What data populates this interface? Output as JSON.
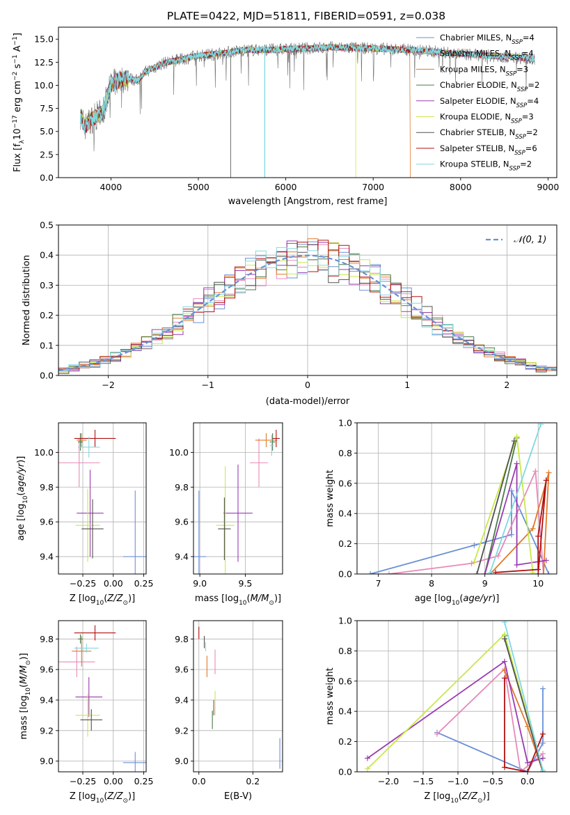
{
  "figure": {
    "title": "PLATE=0422, MJD=51811, FIBERID=0591, z=0.038"
  },
  "colors": {
    "chabrier_miles": "#6a8fd8",
    "salpeter_miles": "#e888b8",
    "kroupa_miles": "#e07a2a",
    "chabrier_elodie": "#4a7a4a",
    "salpeter_elodie": "#9a3ab0",
    "kroupa_elodie": "#c8e84a",
    "chabrier_stelib": "#505050",
    "salpeter_stelib": "#b01010",
    "kroupa_stelib": "#80d8e0"
  },
  "chart_data": [
    {
      "id": "spectrum",
      "type": "line",
      "xlabel": "wavelength [Angstrom, rest frame]",
      "ylabel": "Flux [f_λ10^-17 erg cm^-2 s^-1 A^-1]",
      "xlim": [
        3400,
        9100
      ],
      "ylim": [
        0,
        16.3
      ],
      "xticks": [
        4000,
        5000,
        6000,
        7000,
        8000,
        9000
      ],
      "yticks": [
        0.0,
        2.5,
        5.0,
        7.5,
        10.0,
        12.5,
        15.0
      ],
      "grid": false,
      "legend_position": "top-right",
      "legend": [
        {
          "base": "Chabrier MILES, N",
          "sub": "SSP",
          "val": "=4",
          "color": "chabrier_miles"
        },
        {
          "base": "Salpeter MILES, N",
          "sub": "SSP",
          "val": "=4",
          "color": "salpeter_miles"
        },
        {
          "base": "Kroupa MILES, N",
          "sub": "SSP",
          "val": "=3",
          "color": "kroupa_miles"
        },
        {
          "base": "Chabrier ELODIE, N",
          "sub": "SSP",
          "val": "=2",
          "color": "chabrier_elodie"
        },
        {
          "base": "Salpeter ELODIE, N",
          "sub": "SSP",
          "val": "=4",
          "color": "salpeter_elodie"
        },
        {
          "base": "Kroupa ELODIE, N",
          "sub": "SSP",
          "val": "=3",
          "color": "kroupa_elodie"
        },
        {
          "base": "Chabrier STELIB, N",
          "sub": "SSP",
          "val": "=2",
          "color": "chabrier_stelib"
        },
        {
          "base": "Salpeter STELIB, N",
          "sub": "SSP",
          "val": "=6",
          "color": "salpeter_stelib"
        },
        {
          "base": "Kroupa STELIB, N",
          "sub": "SSP",
          "val": "=2",
          "color": "kroupa_stelib"
        }
      ],
      "continuum": [
        [
          3650,
          6.8
        ],
        [
          3700,
          5.5
        ],
        [
          3800,
          6.5
        ],
        [
          3900,
          7.0
        ],
        [
          4000,
          10.0
        ],
        [
          4100,
          10.6
        ],
        [
          4200,
          10.8
        ],
        [
          4300,
          10.5
        ],
        [
          4400,
          11.5
        ],
        [
          4600,
          12.4
        ],
        [
          4800,
          12.8
        ],
        [
          5000,
          13.2
        ],
        [
          5200,
          13.4
        ],
        [
          5500,
          13.8
        ],
        [
          6000,
          13.9
        ],
        [
          6500,
          14.1
        ],
        [
          7000,
          14.0
        ],
        [
          7500,
          13.8
        ],
        [
          8000,
          13.4
        ],
        [
          8500,
          13.1
        ],
        [
          8850,
          12.9
        ]
      ],
      "dropouts": [
        {
          "x": 5370,
          "model": "chabrier_stelib"
        },
        {
          "x": 5760,
          "model": "kroupa_stelib"
        },
        {
          "x": 6800,
          "model": "kroupa_elodie"
        },
        {
          "x": 7420,
          "model": "kroupa_miles"
        }
      ]
    },
    {
      "id": "residuals",
      "type": "histogram",
      "xlabel": "(data-model)/error",
      "ylabel": "Normed distribution",
      "xlim": [
        -2.5,
        2.5
      ],
      "ylim": [
        0,
        0.5
      ],
      "xticks": [
        -2,
        -1,
        0,
        1,
        2
      ],
      "yticks": [
        0.0,
        0.1,
        0.2,
        0.3,
        0.4,
        0.5
      ],
      "grid": true,
      "reference_curve": {
        "label": "N(0,1)",
        "mean": 0,
        "sigma": 1,
        "color": "#6a8fd8"
      },
      "bins": 48,
      "legend_position": "top-right"
    },
    {
      "id": "age_vs_Z",
      "type": "scatter",
      "xlabel": "Z [log10(Z/Z⊙)]",
      "ylabel": "age [log10(age/yr)]",
      "xlim": [
        -0.45,
        0.27
      ],
      "ylim": [
        9.3,
        10.17
      ],
      "xticks": [
        -0.25,
        0.0,
        0.25
      ],
      "yticks": [
        9.4,
        9.6,
        9.8,
        10.0
      ],
      "grid": true,
      "points": [
        {
          "model": "chabrier_miles",
          "x": 0.18,
          "y": 9.4,
          "xerr": 0.1,
          "yerr": 0.38
        },
        {
          "model": "salpeter_miles",
          "x": -0.28,
          "y": 9.94,
          "xerr": 0.17,
          "yerr": 0.14
        },
        {
          "model": "kroupa_miles",
          "x": -0.26,
          "y": 10.07,
          "xerr": 0.04,
          "yerr": 0.04
        },
        {
          "model": "chabrier_elodie",
          "x": -0.27,
          "y": 10.06,
          "xerr": 0.02,
          "yerr": 0.05
        },
        {
          "model": "salpeter_elodie",
          "x": -0.19,
          "y": 9.65,
          "xerr": 0.11,
          "yerr": 0.25
        },
        {
          "model": "kroupa_elodie",
          "x": -0.21,
          "y": 9.58,
          "xerr": 0.1,
          "yerr": 0.21
        },
        {
          "model": "chabrier_stelib",
          "x": -0.17,
          "y": 9.56,
          "xerr": 0.09,
          "yerr": 0.17
        },
        {
          "model": "salpeter_stelib",
          "x": -0.15,
          "y": 10.08,
          "xerr": 0.17,
          "yerr": 0.05
        },
        {
          "model": "kroupa_stelib",
          "x": -0.2,
          "y": 10.03,
          "xerr": 0.09,
          "yerr": 0.06
        }
      ]
    },
    {
      "id": "age_vs_mass",
      "type": "scatter",
      "xlabel": "mass [log10(M/M⊙)]",
      "ylabel": "",
      "xlim": [
        8.93,
        9.91
      ],
      "ylim": [
        9.3,
        10.17
      ],
      "xticks": [
        9.0,
        9.5
      ],
      "yticks": [
        9.4,
        9.6,
        9.8,
        10.0
      ],
      "grid": true,
      "points": [
        {
          "model": "chabrier_miles",
          "x": 8.99,
          "y": 9.4,
          "xerr": 0.08,
          "yerr": 0.38
        },
        {
          "model": "salpeter_miles",
          "x": 9.65,
          "y": 9.94,
          "xerr": 0.1,
          "yerr": 0.14
        },
        {
          "model": "kroupa_miles",
          "x": 9.73,
          "y": 10.07,
          "xerr": 0.12,
          "yerr": 0.04
        },
        {
          "model": "chabrier_elodie",
          "x": 9.8,
          "y": 10.06,
          "xerr": 0.03,
          "yerr": 0.05
        },
        {
          "model": "salpeter_elodie",
          "x": 9.42,
          "y": 9.65,
          "xerr": 0.16,
          "yerr": 0.28
        },
        {
          "model": "kroupa_elodie",
          "x": 9.28,
          "y": 9.58,
          "xerr": 0.1,
          "yerr": 0.34
        },
        {
          "model": "chabrier_stelib",
          "x": 9.27,
          "y": 9.56,
          "xerr": 0.07,
          "yerr": 0.18
        },
        {
          "model": "salpeter_stelib",
          "x": 9.84,
          "y": 10.08,
          "xerr": 0.04,
          "yerr": 0.05
        },
        {
          "model": "kroupa_stelib",
          "x": 9.79,
          "y": 10.04,
          "xerr": 0.02,
          "yerr": 0.06
        }
      ]
    },
    {
      "id": "weight_vs_age",
      "type": "line",
      "xlabel": "age [log10(age/yr)]",
      "ylabel": "mass weight",
      "xlim": [
        6.6,
        10.35
      ],
      "ylim": [
        0.0,
        1.0
      ],
      "xticks": [
        7,
        8,
        9,
        10
      ],
      "yticks": [
        0.0,
        0.2,
        0.4,
        0.6,
        0.8,
        1.0
      ],
      "grid": true,
      "series": [
        {
          "model": "chabrier_miles",
          "points": [
            [
              6.85,
              0.0
            ],
            [
              8.8,
              0.19
            ],
            [
              9.5,
              0.26
            ],
            [
              9.5,
              0.55
            ],
            [
              10.2,
              0.0
            ]
          ]
        },
        {
          "model": "salpeter_miles",
          "points": [
            [
              7.2,
              0.0
            ],
            [
              8.75,
              0.07
            ],
            [
              9.25,
              0.12
            ],
            [
              9.95,
              0.68
            ],
            [
              10.1,
              0.0
            ]
          ]
        },
        {
          "model": "kroupa_miles",
          "points": [
            [
              9.1,
              0.0
            ],
            [
              9.9,
              0.3
            ],
            [
              10.2,
              0.67
            ],
            [
              10.1,
              0.0
            ]
          ]
        },
        {
          "model": "chabrier_elodie",
          "points": [
            [
              9.0,
              0.0
            ],
            [
              9.6,
              0.9
            ]
          ]
        },
        {
          "model": "salpeter_elodie",
          "points": [
            [
              9.0,
              0.0
            ],
            [
              9.6,
              0.73
            ],
            [
              9.6,
              0.06
            ],
            [
              10.15,
              0.09
            ]
          ]
        },
        {
          "model": "kroupa_elodie",
          "points": [
            [
              8.8,
              0.08
            ],
            [
              9.6,
              0.91
            ],
            [
              9.9,
              0.01
            ]
          ]
        },
        {
          "model": "chabrier_stelib",
          "points": [
            [
              8.85,
              0.0
            ],
            [
              9.55,
              0.88
            ]
          ]
        },
        {
          "model": "salpeter_stelib",
          "points": [
            [
              9.2,
              0.01
            ],
            [
              10.0,
              0.03
            ],
            [
              10.0,
              0.25
            ],
            [
              10.15,
              0.62
            ],
            [
              10.0,
              0.0
            ]
          ]
        },
        {
          "model": "kroupa_stelib",
          "points": [
            [
              9.1,
              0.01
            ],
            [
              10.05,
              0.99
            ]
          ]
        }
      ]
    },
    {
      "id": "mass_vs_Z",
      "type": "scatter",
      "xlabel": "Z [log10(Z/Z⊙)]",
      "ylabel": "mass [log10(M/M⊙)]",
      "xlim": [
        -0.45,
        0.27
      ],
      "ylim": [
        8.93,
        9.92
      ],
      "xticks": [
        -0.25,
        0.0,
        0.25
      ],
      "yticks": [
        9.0,
        9.2,
        9.4,
        9.6,
        9.8
      ],
      "grid": true,
      "points": [
        {
          "model": "chabrier_miles",
          "x": 0.18,
          "y": 8.99,
          "xerr": 0.1,
          "yerr": 0.07
        },
        {
          "model": "salpeter_miles",
          "x": -0.3,
          "y": 9.65,
          "xerr": 0.15,
          "yerr": 0.1
        },
        {
          "model": "kroupa_miles",
          "x": -0.26,
          "y": 9.72,
          "xerr": 0.08,
          "yerr": 0.1
        },
        {
          "model": "chabrier_elodie",
          "x": -0.27,
          "y": 9.8,
          "xerr": 0.02,
          "yerr": 0.03
        },
        {
          "model": "salpeter_elodie",
          "x": -0.2,
          "y": 9.42,
          "xerr": 0.11,
          "yerr": 0.13
        },
        {
          "model": "kroupa_elodie",
          "x": -0.21,
          "y": 9.3,
          "xerr": 0.1,
          "yerr": 0.14
        },
        {
          "model": "chabrier_stelib",
          "x": -0.18,
          "y": 9.27,
          "xerr": 0.09,
          "yerr": 0.07
        },
        {
          "model": "salpeter_stelib",
          "x": -0.15,
          "y": 9.84,
          "xerr": 0.17,
          "yerr": 0.05
        },
        {
          "model": "kroupa_stelib",
          "x": -0.22,
          "y": 9.74,
          "xerr": 0.1,
          "yerr": 0.03
        }
      ]
    },
    {
      "id": "mass_vs_ebv",
      "type": "scatter",
      "xlabel": "E(B-V)",
      "ylabel": "",
      "xlim": [
        -0.02,
        0.31
      ],
      "ylim": [
        8.93,
        9.92
      ],
      "xticks": [
        0.0,
        0.2
      ],
      "yticks": [
        9.0,
        9.2,
        9.4,
        9.6,
        9.8
      ],
      "grid": true,
      "points": [
        {
          "model": "chabrier_miles",
          "x": 0.3,
          "y": 9.05,
          "xerr": 0.0,
          "yerr": 0.1
        },
        {
          "model": "salpeter_miles",
          "x": 0.06,
          "y": 9.65,
          "xerr": 0.0,
          "yerr": 0.08
        },
        {
          "model": "kroupa_miles",
          "x": 0.03,
          "y": 9.62,
          "xerr": 0.0,
          "yerr": 0.07
        },
        {
          "model": "chabrier_elodie",
          "x": 0.05,
          "y": 9.27,
          "xerr": 0.0,
          "yerr": 0.06
        },
        {
          "model": "salpeter_elodie",
          "x": 0.055,
          "y": 9.35,
          "xerr": 0.0,
          "yerr": 0.05
        },
        {
          "model": "kroupa_elodie",
          "x": 0.06,
          "y": 9.38,
          "xerr": 0.0,
          "yerr": 0.08
        },
        {
          "model": "chabrier_stelib",
          "x": 0.02,
          "y": 9.78,
          "xerr": 0.0,
          "yerr": 0.04
        },
        {
          "model": "salpeter_stelib",
          "x": 0.0,
          "y": 9.84,
          "xerr": 0.0,
          "yerr": 0.04
        },
        {
          "model": "kroupa_stelib",
          "x": 0.025,
          "y": 9.75,
          "xerr": 0.0,
          "yerr": 0.03
        }
      ]
    },
    {
      "id": "weight_vs_Z",
      "type": "line",
      "xlabel": "Z [log10(Z/Z⊙)]",
      "ylabel": "mass weight",
      "xlim": [
        -2.45,
        0.42
      ],
      "ylim": [
        0.0,
        1.0
      ],
      "xticks": [
        -2.0,
        -1.5,
        -1.0,
        -0.5,
        0.0
      ],
      "yticks": [
        0.0,
        0.2,
        0.4,
        0.6,
        0.8,
        1.0
      ],
      "grid": true,
      "series": [
        {
          "model": "chabrier_miles",
          "points": [
            [
              -1.3,
              0.26
            ],
            [
              0.0,
              0.0
            ],
            [
              0.22,
              0.19
            ],
            [
              0.22,
              0.55
            ]
          ]
        },
        {
          "model": "salpeter_miles",
          "points": [
            [
              -1.3,
              0.25
            ],
            [
              -0.33,
              0.68
            ],
            [
              -0.1,
              0.0
            ],
            [
              0.22,
              0.12
            ]
          ]
        },
        {
          "model": "kroupa_miles",
          "points": [
            [
              -0.33,
              0.67
            ],
            [
              0.0,
              0.3
            ],
            [
              0.22,
              0.0
            ]
          ]
        },
        {
          "model": "chabrier_elodie",
          "points": [
            [
              -0.33,
              0.9
            ],
            [
              0.22,
              0.0
            ]
          ]
        },
        {
          "model": "salpeter_elodie",
          "points": [
            [
              -2.3,
              0.09
            ],
            [
              -0.33,
              0.73
            ],
            [
              0.0,
              0.06
            ],
            [
              0.22,
              0.09
            ]
          ]
        },
        {
          "model": "kroupa_elodie",
          "points": [
            [
              -2.3,
              0.02
            ],
            [
              -0.33,
              0.91
            ],
            [
              0.22,
              0.01
            ]
          ]
        },
        {
          "model": "chabrier_stelib",
          "points": [
            [
              -0.33,
              0.88
            ],
            [
              0.22,
              0.0
            ]
          ]
        },
        {
          "model": "salpeter_stelib",
          "points": [
            [
              -0.33,
              0.62
            ],
            [
              -0.33,
              0.03
            ],
            [
              0.0,
              0.0
            ],
            [
              0.22,
              0.25
            ]
          ]
        },
        {
          "model": "kroupa_stelib",
          "points": [
            [
              -0.33,
              0.99
            ],
            [
              0.22,
              0.01
            ]
          ]
        }
      ]
    }
  ]
}
